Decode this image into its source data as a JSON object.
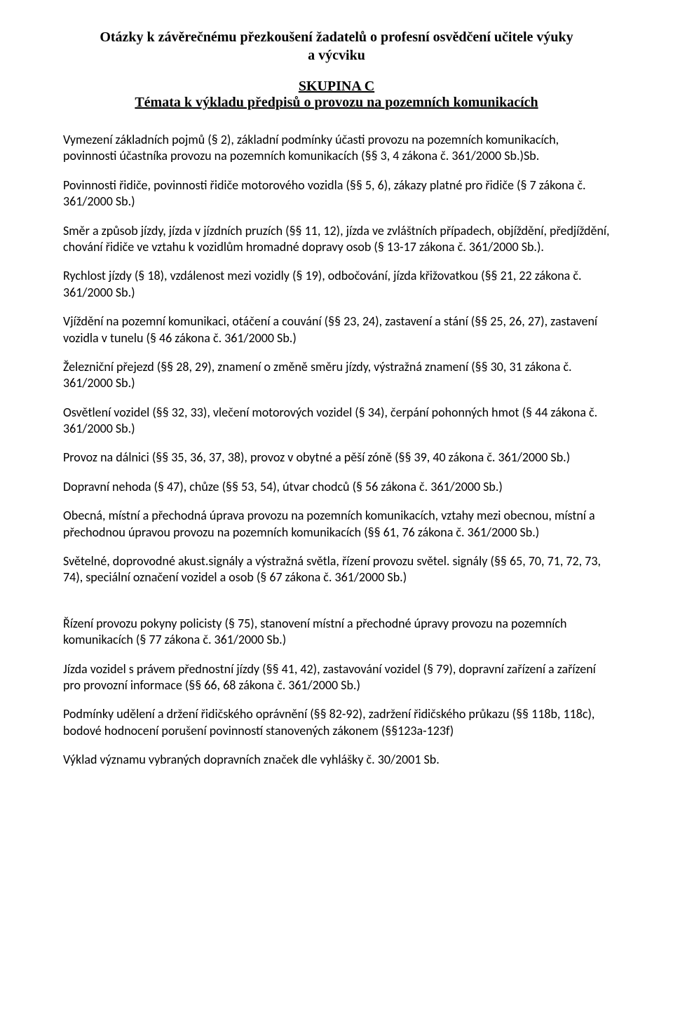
{
  "header": {
    "title_line1": "Otázky k závěrečnému přezkoušení žadatelů o profesní osvědčení učitele výuky",
    "title_line2": "a výcviku",
    "group": "SKUPINA C",
    "subtitle": "Témata k výkladu předpisů o provozu na pozemních komunikacích"
  },
  "paragraphs": [
    "Vymezení základních pojmů (§ 2), základní podmínky účasti provozu na pozemních komunikacích, povinnosti účastníka provozu na pozemních komunikacích (§§ 3, 4 zákona č. 361/2000 Sb.)Sb.",
    "Povinnosti řidiče, povinnosti řidiče motorového vozidla (§§ 5, 6), zákazy platné pro řidiče  (§ 7 zákona č. 361/2000 Sb.)",
    "Směr a způsob jízdy, jízda v jízdních pruzích (§§ 11, 12), jízda ve zvláštních případech,  objíždění, předjíždění, chování řidiče ve vztahu k vozidlům hromadné dopravy osob (§ 13-17 zákona č. 361/2000 Sb.).",
    "Rychlost jízdy (§ 18), vzdálenost mezi vozidly (§ 19), odbočování, jízda křižovatkou (§§  21, 22 zákona č. 361/2000 Sb.)",
    "Vjíždění na pozemní komunikaci, otáčení a couvání (§§ 23, 24), zastavení a stání (§§ 25, 26, 27), zastavení vozidla v tunelu (§ 46 zákona č. 361/2000 Sb.)",
    "Železniční přejezd (§§ 28, 29), znamení o změně směru jízdy, výstražná znamení (§§ 30, 31 zákona č. 361/2000 Sb.)",
    "Osvětlení vozidel (§§ 32, 33), vlečení motorových vozidel (§ 34), čerpání pohonných hmot (§ 44 zákona č. 361/2000 Sb.)",
    "Provoz na dálnici (§§ 35, 36, 37, 38), provoz v obytné a pěší zóně (§§ 39, 40 zákona č. 361/2000 Sb.)",
    "Dopravní nehoda (§ 47), chůze (§§ 53, 54), útvar chodců (§ 56 zákona č. 361/2000 Sb.)",
    "Obecná, místní a přechodná úprava provozu na pozemních komunikacích, vztahy mezi     obecnou, místní a přechodnou úpravou provozu na pozemních komunikacích (§§ 61, 76 zákona č. 361/2000 Sb.)",
    "Světelné, doprovodné akust.signály a výstražná světla, řízení provozu světel. signály (§§  65, 70, 71, 72, 73, 74), speciální označení vozidel a osob (§ 67 zákona č. 361/2000 Sb.)",
    "Řízení provozu pokyny policisty (§ 75), stanovení místní a přechodné úpravy provozu na pozemních komunikacích (§ 77 zákona č. 361/2000 Sb.)",
    "Jízda vozidel s právem přednostní jízdy (§§ 41, 42), zastavování vozidel (§ 79), dopravní zařízení a zařízení pro provozní informace (§§ 66, 68 zákona č. 361/2000 Sb.)",
    "Podmínky udělení a držení řidičského oprávnění (§§ 82-92), zadržení řidičského průkazu (§§ 118b, 118c), bodové hodnocení porušení povinností stanovených zákonem (§§123a-123f)",
    "Výklad významu vybraných dopravních značek dle vyhlášky č. 30/2001 Sb."
  ]
}
